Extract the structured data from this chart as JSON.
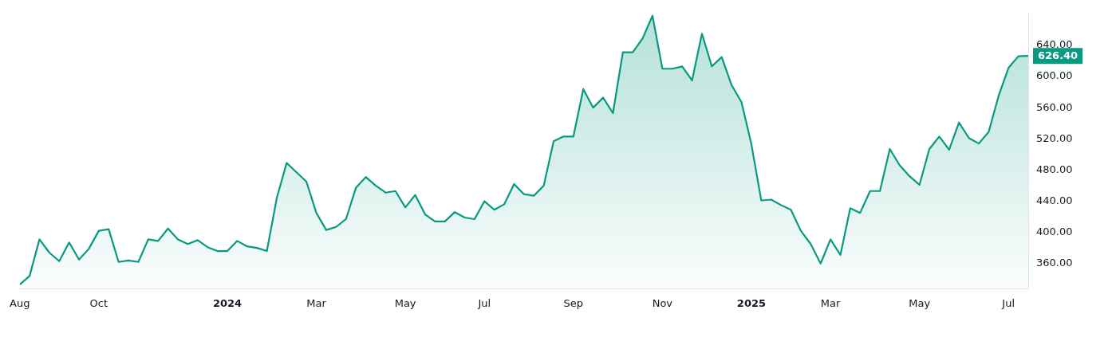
{
  "chart_data": {
    "type": "area",
    "color": "#089981",
    "marker": "none",
    "grid": false,
    "legend": false,
    "x": [
      "2023-08-07",
      "2023-08-14",
      "2023-08-21",
      "2023-08-28",
      "2023-09-04",
      "2023-09-11",
      "2023-09-18",
      "2023-09-25",
      "2023-10-02",
      "2023-10-09",
      "2023-10-16",
      "2023-10-23",
      "2023-10-30",
      "2023-11-06",
      "2023-11-13",
      "2023-11-20",
      "2023-11-27",
      "2023-12-04",
      "2023-12-11",
      "2023-12-18",
      "2023-12-25",
      "2024-01-01",
      "2024-01-08",
      "2024-01-15",
      "2024-01-22",
      "2024-01-29",
      "2024-02-05",
      "2024-02-12",
      "2024-02-19",
      "2024-02-26",
      "2024-03-04",
      "2024-03-11",
      "2024-03-18",
      "2024-03-25",
      "2024-04-01",
      "2024-04-08",
      "2024-04-15",
      "2024-04-22",
      "2024-04-29",
      "2024-05-06",
      "2024-05-13",
      "2024-05-20",
      "2024-05-27",
      "2024-06-03",
      "2024-06-10",
      "2024-06-17",
      "2024-06-24",
      "2024-07-01",
      "2024-07-08",
      "2024-07-15",
      "2024-07-22",
      "2024-07-29",
      "2024-08-05",
      "2024-08-12",
      "2024-08-19",
      "2024-08-26",
      "2024-09-02",
      "2024-09-09",
      "2024-09-16",
      "2024-09-23",
      "2024-09-30",
      "2024-10-07",
      "2024-10-14",
      "2024-10-21",
      "2024-10-28",
      "2024-11-04",
      "2024-11-11",
      "2024-11-18",
      "2024-11-25",
      "2024-12-02",
      "2024-12-09",
      "2024-12-16",
      "2024-12-23",
      "2024-12-30",
      "2025-01-06",
      "2025-01-13",
      "2025-01-20",
      "2025-01-27",
      "2025-02-03",
      "2025-02-10",
      "2025-02-17",
      "2025-02-24",
      "2025-03-03",
      "2025-03-10",
      "2025-03-17",
      "2025-03-24",
      "2025-03-31",
      "2025-04-07",
      "2025-04-14",
      "2025-04-21",
      "2025-04-28",
      "2025-05-05",
      "2025-05-12",
      "2025-05-19",
      "2025-05-26",
      "2025-06-02",
      "2025-06-09",
      "2025-06-16",
      "2025-06-23",
      "2025-06-30",
      "2025-07-07",
      "2025-07-14",
      "2025-07-21"
    ],
    "values": [
      333,
      344,
      391,
      374,
      363,
      387,
      365,
      379,
      402,
      404,
      362,
      364,
      362,
      391,
      389,
      405,
      391,
      385,
      390,
      381,
      376,
      376,
      389,
      382,
      380,
      376,
      444,
      489,
      477,
      465,
      425,
      403,
      407,
      417,
      457,
      471,
      460,
      451,
      453,
      432,
      448,
      423,
      414,
      414,
      426,
      419,
      417,
      440,
      429,
      436,
      462,
      449,
      447,
      460,
      517,
      523,
      523,
      584,
      560,
      573,
      553,
      631,
      631,
      649,
      678,
      610,
      610,
      613,
      595,
      655,
      613,
      625,
      589,
      567,
      513,
      441,
      442,
      435,
      429,
      402,
      385,
      360,
      391,
      371,
      431,
      425,
      453,
      453,
      507,
      486,
      472,
      461,
      507,
      523,
      506,
      541,
      521,
      514,
      529,
      575,
      611,
      626,
      626.4
    ],
    "xlim": [
      "2023-08-07",
      "2025-07-21"
    ],
    "xticks": [
      {
        "value": "2023-08-07",
        "label": "Aug"
      },
      {
        "value": "2023-10-02",
        "label": "Oct"
      },
      {
        "value": "2024-01-01",
        "label": "2024"
      },
      {
        "value": "2024-03-04",
        "label": "Mar"
      },
      {
        "value": "2024-05-06",
        "label": "May"
      },
      {
        "value": "2024-07-01",
        "label": "Jul"
      },
      {
        "value": "2024-09-02",
        "label": "Sep"
      },
      {
        "value": "2024-11-04",
        "label": "Nov"
      },
      {
        "value": "2025-01-06",
        "label": "2025"
      },
      {
        "value": "2025-03-03",
        "label": "Mar"
      },
      {
        "value": "2025-05-05",
        "label": "May"
      },
      {
        "value": "2025-07-07",
        "label": "Jul"
      }
    ],
    "ylim": [
      328,
      680
    ],
    "yticks": [
      {
        "value": 360,
        "label": "360.00"
      },
      {
        "value": 400,
        "label": "400.00"
      },
      {
        "value": 440,
        "label": "440.00"
      },
      {
        "value": 480,
        "label": "480.00"
      },
      {
        "value": 520,
        "label": "520.00"
      },
      {
        "value": 560,
        "label": "560.00"
      },
      {
        "value": 600,
        "label": "600.00"
      },
      {
        "value": 640,
        "label": "640.00"
      }
    ],
    "annotations": [
      {
        "text": "626.40",
        "x": "2025-07-21",
        "y": 626.4
      }
    ]
  }
}
